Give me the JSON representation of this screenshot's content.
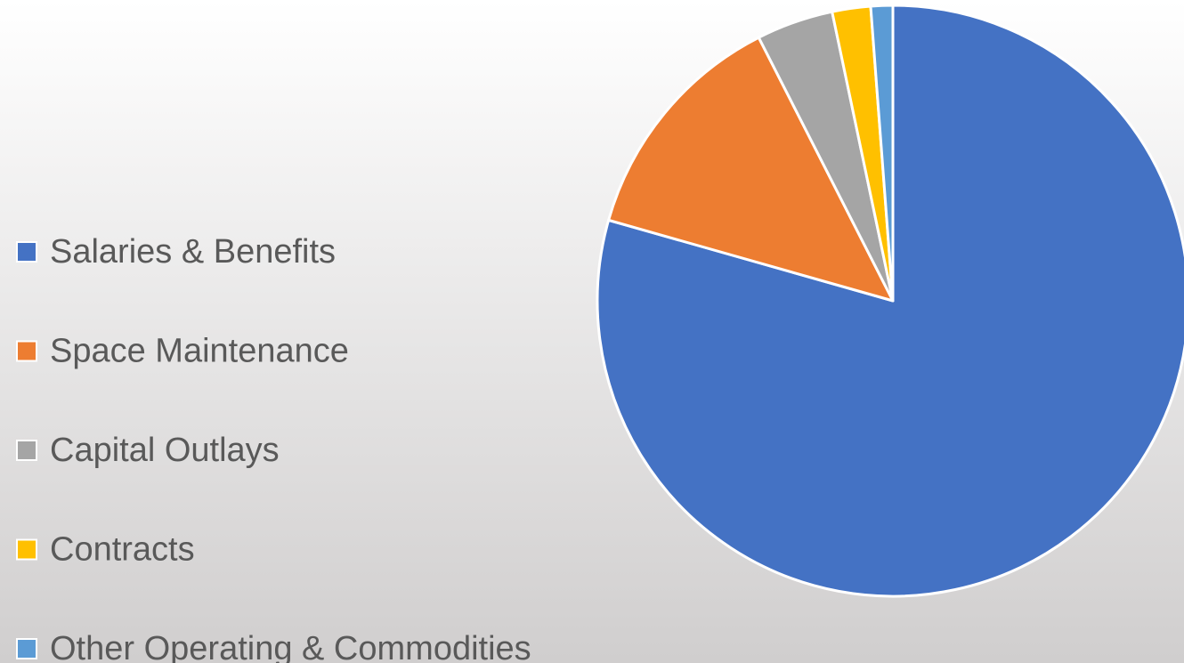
{
  "chart_data": {
    "type": "pie",
    "categories": [
      "Salaries & Benefits",
      "Space Maintenance",
      "Capital Outlays",
      "Contracts",
      "Other Operating & Commodities"
    ],
    "values": [
      79.4,
      13.1,
      4.2,
      2.1,
      1.2
    ],
    "colors": [
      "#4472c4",
      "#ed7d31",
      "#a5a5a5",
      "#ffc000",
      "#5b9bd5"
    ],
    "legend": "left"
  }
}
